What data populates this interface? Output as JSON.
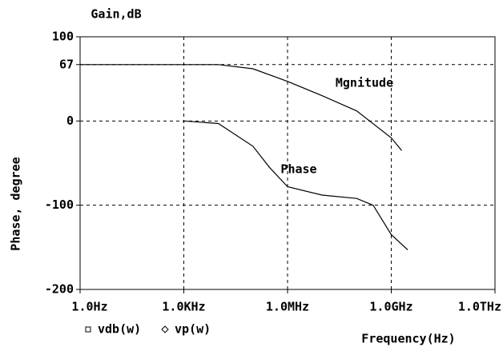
{
  "chart_data": {
    "type": "line",
    "y_label": "Gain,dB",
    "y2_label": "Phase, degree",
    "x_label": "Frequency(Hz)",
    "log_x": true,
    "grid": true,
    "xlim": [
      1,
      1000000000000
    ],
    "xticks": [
      {
        "value": 1,
        "label": "1.0Hz"
      },
      {
        "value": 1000,
        "label": "1.0KHz"
      },
      {
        "value": 1000000,
        "label": "1.0MHz"
      },
      {
        "value": 1000000000,
        "label": "1.0GHz"
      },
      {
        "value": 1000000000000,
        "label": "1.0THz"
      }
    ],
    "ylim": [
      -200,
      100
    ],
    "yticks": [
      100,
      67,
      0,
      -100,
      -200
    ],
    "annotations": [
      {
        "text": "Mgnitude",
        "series": 0
      },
      {
        "text": "Phase",
        "series": 1
      }
    ],
    "series": [
      {
        "name": "vdb(w)",
        "color": "#000000",
        "marker": "square",
        "x": [
          1,
          10000,
          100000,
          1000000,
          10000000,
          100000000,
          1000000000,
          2000000000
        ],
        "values": [
          67,
          67,
          62,
          47,
          30,
          12,
          -20,
          -35
        ]
      },
      {
        "name": "vp(w)",
        "color": "#000000",
        "marker": "diamond",
        "x": [
          1000,
          10000,
          100000,
          300000,
          1000000,
          10000000,
          100000000,
          300000000,
          1000000000,
          3000000000
        ],
        "values": [
          0,
          -3,
          -30,
          -55,
          -78,
          -88,
          -92,
          -100,
          -135,
          -153
        ]
      }
    ]
  }
}
